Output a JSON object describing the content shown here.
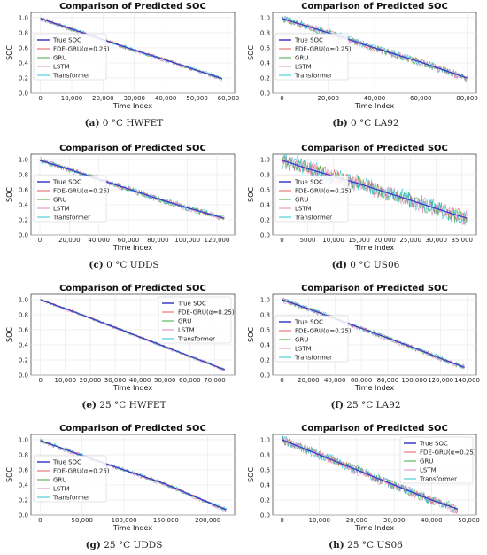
{
  "legend_labels": [
    "True SOC",
    "FDE-GRU(α=0.25)",
    "GRU",
    "LSTM",
    "Transformer"
  ],
  "series_colors": {
    "True SOC": "#3b3bcc",
    "FDE-GRU(α=0.25)": "#e34a4a",
    "GRU": "#2ca02c",
    "LSTM": "#e377c2",
    "Transformer": "#17becf"
  },
  "chart_data": [
    {
      "type": "line",
      "title": "Comparison of Predicted SOC",
      "xlabel": "Time Index",
      "ylabel": "SOC",
      "caption_tag": "(a)",
      "caption_text": "0 °C HWFET",
      "xlim": [
        -3000,
        62000
      ],
      "ylim": [
        0.0,
        1.07
      ],
      "xticks": [
        0,
        10000,
        20000,
        30000,
        40000,
        50000,
        60000
      ],
      "xtick_labels": [
        "0",
        "10,000",
        "20,000",
        "30,000",
        "40,000",
        "50,000",
        "60,000"
      ],
      "yticks": [
        0.0,
        0.2,
        0.4,
        0.6,
        0.8,
        1.0
      ],
      "ytick_labels": [
        "0.0",
        "0.2",
        "0.4",
        "0.6",
        "0.8",
        "1.0"
      ],
      "grid": true,
      "legend": "left",
      "true_soc": {
        "x": [
          0,
          10000,
          20000,
          30000,
          40000,
          50000,
          58000
        ],
        "y": [
          0.99,
          0.85,
          0.71,
          0.57,
          0.44,
          0.3,
          0.19
        ]
      },
      "noise": 0.02
    },
    {
      "type": "line",
      "title": "Comparison of Predicted SOC",
      "xlabel": "Time Index",
      "ylabel": "SOC",
      "caption_tag": "(b)",
      "caption_text": "0 °C LA92",
      "xlim": [
        -4000,
        84000
      ],
      "ylim": [
        0.0,
        1.07
      ],
      "xticks": [
        0,
        20000,
        40000,
        60000,
        80000
      ],
      "xtick_labels": [
        "0",
        "20,000",
        "40,000",
        "60,000",
        "80,000"
      ],
      "yticks": [
        0.0,
        0.2,
        0.4,
        0.6,
        0.8,
        1.0
      ],
      "ytick_labels": [
        "0.0",
        "0.2",
        "0.4",
        "0.6",
        "0.8",
        "1.0"
      ],
      "grid": true,
      "legend": "left",
      "true_soc": {
        "x": [
          0,
          20000,
          40000,
          60000,
          80000
        ],
        "y": [
          0.99,
          0.8,
          0.6,
          0.41,
          0.2
        ]
      },
      "noise": 0.04
    },
    {
      "type": "line",
      "title": "Comparison of Predicted SOC",
      "xlabel": "Time Index",
      "ylabel": "SOC",
      "caption_tag": "(c)",
      "caption_text": "0 °C UDDS",
      "xlim": [
        -6000,
        132000
      ],
      "ylim": [
        0.0,
        1.07
      ],
      "xticks": [
        0,
        20000,
        40000,
        60000,
        80000,
        100000,
        120000
      ],
      "xtick_labels": [
        "0",
        "20,000",
        "40,000",
        "60,000",
        "80,000",
        "100,000",
        "120,000"
      ],
      "yticks": [
        0.0,
        0.2,
        0.4,
        0.6,
        0.8,
        1.0
      ],
      "ytick_labels": [
        "0.0",
        "0.2",
        "0.4",
        "0.6",
        "0.8",
        "1.0"
      ],
      "grid": true,
      "legend": "left",
      "true_soc": {
        "x": [
          0,
          20000,
          40000,
          60000,
          80000,
          100000,
          125000
        ],
        "y": [
          0.99,
          0.87,
          0.74,
          0.61,
          0.48,
          0.36,
          0.22
        ]
      },
      "noise": 0.03
    },
    {
      "type": "line",
      "title": "Comparison of Predicted SOC",
      "xlabel": "Time Index",
      "ylabel": "SOC",
      "caption_tag": "(d)",
      "caption_text": "0 °C US06",
      "xlim": [
        -1800,
        37800
      ],
      "ylim": [
        0.0,
        1.07
      ],
      "xticks": [
        0,
        5000,
        10000,
        15000,
        20000,
        25000,
        30000,
        35000
      ],
      "xtick_labels": [
        "0",
        "5000",
        "10,000",
        "15,000",
        "20,000",
        "25,000",
        "30,000",
        "35,000"
      ],
      "yticks": [
        0.0,
        0.2,
        0.4,
        0.6,
        0.8,
        1.0
      ],
      "ytick_labels": [
        "0.0",
        "0.2",
        "0.4",
        "0.6",
        "0.8",
        "1.0"
      ],
      "grid": true,
      "legend": "left",
      "true_soc": {
        "x": [
          0,
          5000,
          10000,
          15000,
          20000,
          25000,
          30000,
          36000
        ],
        "y": [
          0.99,
          0.88,
          0.78,
          0.68,
          0.57,
          0.46,
          0.35,
          0.22
        ]
      },
      "noise": 0.09
    },
    {
      "type": "line",
      "title": "Comparison of Predicted SOC",
      "xlabel": "Time Index",
      "ylabel": "SOC",
      "caption_tag": "(e)",
      "caption_text": "25 °C HWFET",
      "xlim": [
        -3800,
        78000
      ],
      "ylim": [
        0.0,
        1.07
      ],
      "xticks": [
        0,
        10000,
        20000,
        30000,
        40000,
        50000,
        60000,
        70000
      ],
      "xtick_labels": [
        "0",
        "10,000",
        "20,000",
        "30,000",
        "40,000",
        "50,000",
        "60,000",
        "70,000"
      ],
      "yticks": [
        0.0,
        0.2,
        0.4,
        0.6,
        0.8,
        1.0
      ],
      "ytick_labels": [
        "0.0",
        "0.2",
        "0.4",
        "0.6",
        "0.8",
        "1.0"
      ],
      "grid": true,
      "legend": "right",
      "true_soc": {
        "x": [
          0,
          15000,
          30000,
          45000,
          60000,
          74000
        ],
        "y": [
          1.0,
          0.82,
          0.63,
          0.44,
          0.25,
          0.07
        ]
      },
      "noise": 0.012
    },
    {
      "type": "line",
      "title": "Comparison of Predicted SOC",
      "xlabel": "Time Index",
      "ylabel": "SOC",
      "caption_tag": "(f)",
      "caption_text": "25 °C LA92",
      "xlim": [
        -7000,
        147000
      ],
      "ylim": [
        0.0,
        1.07
      ],
      "xticks": [
        0,
        20000,
        40000,
        60000,
        80000,
        100000,
        120000,
        140000
      ],
      "xtick_labels": [
        "0",
        "20,000",
        "40,000",
        "60,000",
        "80,000",
        "100,000",
        "120,000",
        "140,000"
      ],
      "yticks": [
        0.0,
        0.2,
        0.4,
        0.6,
        0.8,
        1.0
      ],
      "ytick_labels": [
        "0.0",
        "0.2",
        "0.4",
        "0.6",
        "0.8",
        "1.0"
      ],
      "grid": true,
      "legend": "left",
      "true_soc": {
        "x": [
          0,
          20000,
          40000,
          60000,
          80000,
          100000,
          120000,
          138000
        ],
        "y": [
          1.0,
          0.88,
          0.75,
          0.62,
          0.49,
          0.36,
          0.22,
          0.1
        ]
      },
      "noise": 0.025
    },
    {
      "type": "line",
      "title": "Comparison of Predicted SOC",
      "xlabel": "Time Index",
      "ylabel": "SOC",
      "caption_tag": "(g)",
      "caption_text": "25 °C UDDS",
      "xlim": [
        -11000,
        232000
      ],
      "ylim": [
        0.0,
        1.07
      ],
      "xticks": [
        0,
        50000,
        100000,
        150000,
        200000
      ],
      "xtick_labels": [
        "0",
        "50,000",
        "100,000",
        "150,000",
        "200,000"
      ],
      "yticks": [
        0.0,
        0.2,
        0.4,
        0.6,
        0.8,
        1.0
      ],
      "ytick_labels": [
        "0.0",
        "0.2",
        "0.4",
        "0.6",
        "0.8",
        "1.0"
      ],
      "grid": true,
      "legend": "left",
      "true_soc": {
        "x": [
          0,
          50000,
          100000,
          150000,
          200000,
          222000
        ],
        "y": [
          0.99,
          0.79,
          0.6,
          0.41,
          0.17,
          0.07
        ]
      },
      "noise": 0.02
    },
    {
      "type": "line",
      "title": "Comparison of Predicted SOC",
      "xlabel": "Time Index",
      "ylabel": "SOC",
      "caption_tag": "(h)",
      "caption_text": "25 °C US06",
      "xlim": [
        -2500,
        52000
      ],
      "ylim": [
        0.0,
        1.07
      ],
      "xticks": [
        0,
        10000,
        20000,
        30000,
        40000,
        50000
      ],
      "xtick_labels": [
        "0",
        "10,000",
        "20,000",
        "30,000",
        "40,000",
        "50,000"
      ],
      "yticks": [
        0.0,
        0.2,
        0.4,
        0.6,
        0.8,
        1.0
      ],
      "ytick_labels": [
        "0.0",
        "0.2",
        "0.4",
        "0.6",
        "0.8",
        "1.0"
      ],
      "grid": true,
      "legend": "right",
      "true_soc": {
        "x": [
          0,
          10000,
          20000,
          30000,
          40000,
          47000
        ],
        "y": [
          1.0,
          0.8,
          0.6,
          0.4,
          0.2,
          0.08
        ]
      },
      "noise": 0.05
    }
  ]
}
